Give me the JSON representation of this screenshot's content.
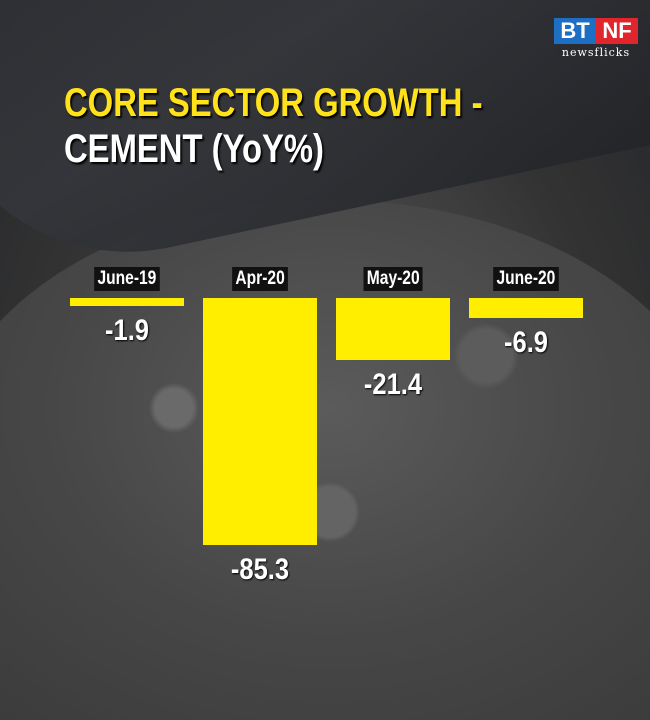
{
  "brand": {
    "left": "BT",
    "right": "NF",
    "sub": "newsflicks",
    "colors": {
      "left": "#1d6fc4",
      "right": "#e0262c"
    }
  },
  "title": {
    "line1": "CORE SECTOR GROWTH -",
    "line2": "CEMENT (YoY%)"
  },
  "chart_data": {
    "type": "bar",
    "title": "CORE SECTOR GROWTH - CEMENT (YoY%)",
    "categories": [
      "June-19",
      "Apr-20",
      "May-20",
      "June-20"
    ],
    "values": [
      -1.9,
      -85.3,
      -21.4,
      -6.9
    ],
    "value_labels": [
      "-1.9",
      "-85.3",
      "-21.4",
      "-6.9"
    ],
    "xlabel": "",
    "ylabel": "YoY%",
    "bar_color": "#ffee00",
    "grid": false,
    "legend": false
  }
}
